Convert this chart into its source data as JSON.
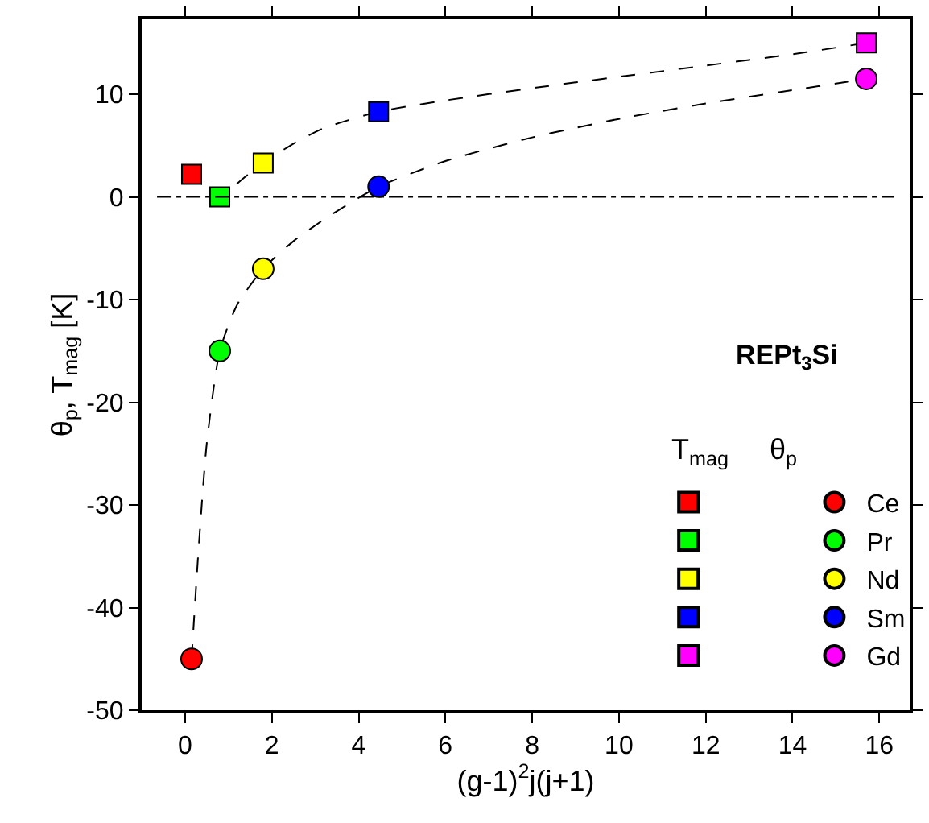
{
  "chart_data": {
    "type": "scatter",
    "xlabel": "(g-1)$^{2}$j(j+1)",
    "ylabel": "θ$_{p}$, T$_{mag}$ [K]",
    "xlim": [
      -1,
      16.7
    ],
    "xticks": [
      0,
      2,
      4,
      6,
      8,
      10,
      12,
      14,
      16
    ],
    "ylim": [
      -50,
      17.3
    ],
    "yticks": [
      -50,
      -40,
      -30,
      -20,
      -10,
      0,
      10
    ],
    "legend": "bottom right",
    "annotations": [
      "REPt$_{3}$Si",
      "T$_{mag}$",
      "θ$_{p}$"
    ],
    "ref_lines": [
      {
        "axis": "y",
        "value": 0,
        "color": "#000000",
        "line_style": "dashdot"
      }
    ],
    "series": [
      {
        "type": "line",
        "color": "#000000",
        "line_style": "dashed",
        "marker": "none",
        "x": [
          0.15,
          0.5,
          0.8,
          1.0,
          1.4,
          1.8,
          2.5,
          3.2,
          4.46,
          6,
          8,
          10,
          12,
          14,
          15.7
        ],
        "values": [
          2.2,
          0.8,
          0,
          0.6,
          2.0,
          3.3,
          5.2,
          6.7,
          8.3,
          9.4,
          10.6,
          11.7,
          12.8,
          13.9,
          15.0
        ]
      },
      {
        "type": "line",
        "color": "#000000",
        "line_style": "dashed",
        "marker": "none",
        "x": [
          0.15,
          0.3,
          0.5,
          0.8,
          1.2,
          1.8,
          2.5,
          3.2,
          3.8,
          4.46,
          6,
          8,
          10,
          12,
          14,
          15.7
        ],
        "values": [
          -45,
          -35,
          -24,
          -15,
          -10.5,
          -7,
          -4.3,
          -2.2,
          -0.6,
          1.0,
          3.5,
          5.8,
          7.6,
          9.1,
          10.4,
          11.5
        ]
      },
      {
        "marker": "square",
        "color": "#ff0000",
        "x": [
          0.15
        ],
        "values": [
          2.2
        ]
      },
      {
        "marker": "square",
        "color": "#00ff00",
        "x": [
          0.8
        ],
        "values": [
          0
        ]
      },
      {
        "marker": "square",
        "color": "#ffff00",
        "x": [
          1.8
        ],
        "values": [
          3.3
        ]
      },
      {
        "marker": "square",
        "color": "#0000ff",
        "x": [
          4.46
        ],
        "values": [
          8.3
        ]
      },
      {
        "marker": "square",
        "color": "#ff00ff",
        "x": [
          15.7
        ],
        "values": [
          15.0
        ]
      },
      {
        "name": "Ce",
        "marker": "circle",
        "color": "#ff0000",
        "x": [
          0.15
        ],
        "values": [
          -45
        ]
      },
      {
        "name": "Pr",
        "marker": "circle",
        "color": "#00ff00",
        "x": [
          0.8
        ],
        "values": [
          -15
        ]
      },
      {
        "name": "Nd",
        "marker": "circle",
        "color": "#ffff00",
        "x": [
          1.8
        ],
        "values": [
          -7
        ]
      },
      {
        "name": "Sm",
        "marker": "circle",
        "color": "#0000ff",
        "x": [
          4.46
        ],
        "values": [
          1.0
        ]
      },
      {
        "name": "Gd",
        "marker": "circle",
        "color": "#ff00ff",
        "x": [
          15.7
        ],
        "values": [
          11.5
        ]
      }
    ]
  }
}
